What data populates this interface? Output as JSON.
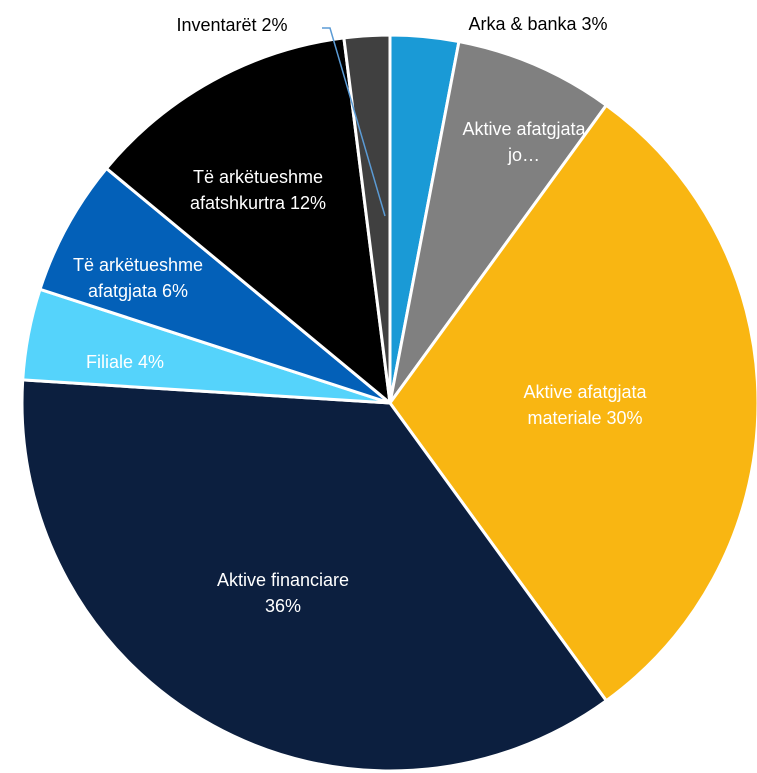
{
  "chart_data": {
    "type": "pie",
    "categories": [
      "Arka & banka",
      "Aktive afatgjata jo…",
      "Aktive afatgjata materiale",
      "Aktive financiare",
      "Filiale",
      "Të arkëtueshme afatgjata",
      "Të arkëtueshme afatshkurtra",
      "Inventarët"
    ],
    "values": [
      3,
      7,
      30,
      36,
      4,
      6,
      12,
      2
    ],
    "value_labels": [
      "3%",
      null,
      "30%",
      "36%",
      "4%",
      "6%",
      "12%",
      "2%"
    ],
    "colors": [
      "#1a9ad6",
      "#808080",
      "#f9b612",
      "#0c1f3f",
      "#55d3fb",
      "#0360b8",
      "#000000",
      "#404040"
    ]
  }
}
